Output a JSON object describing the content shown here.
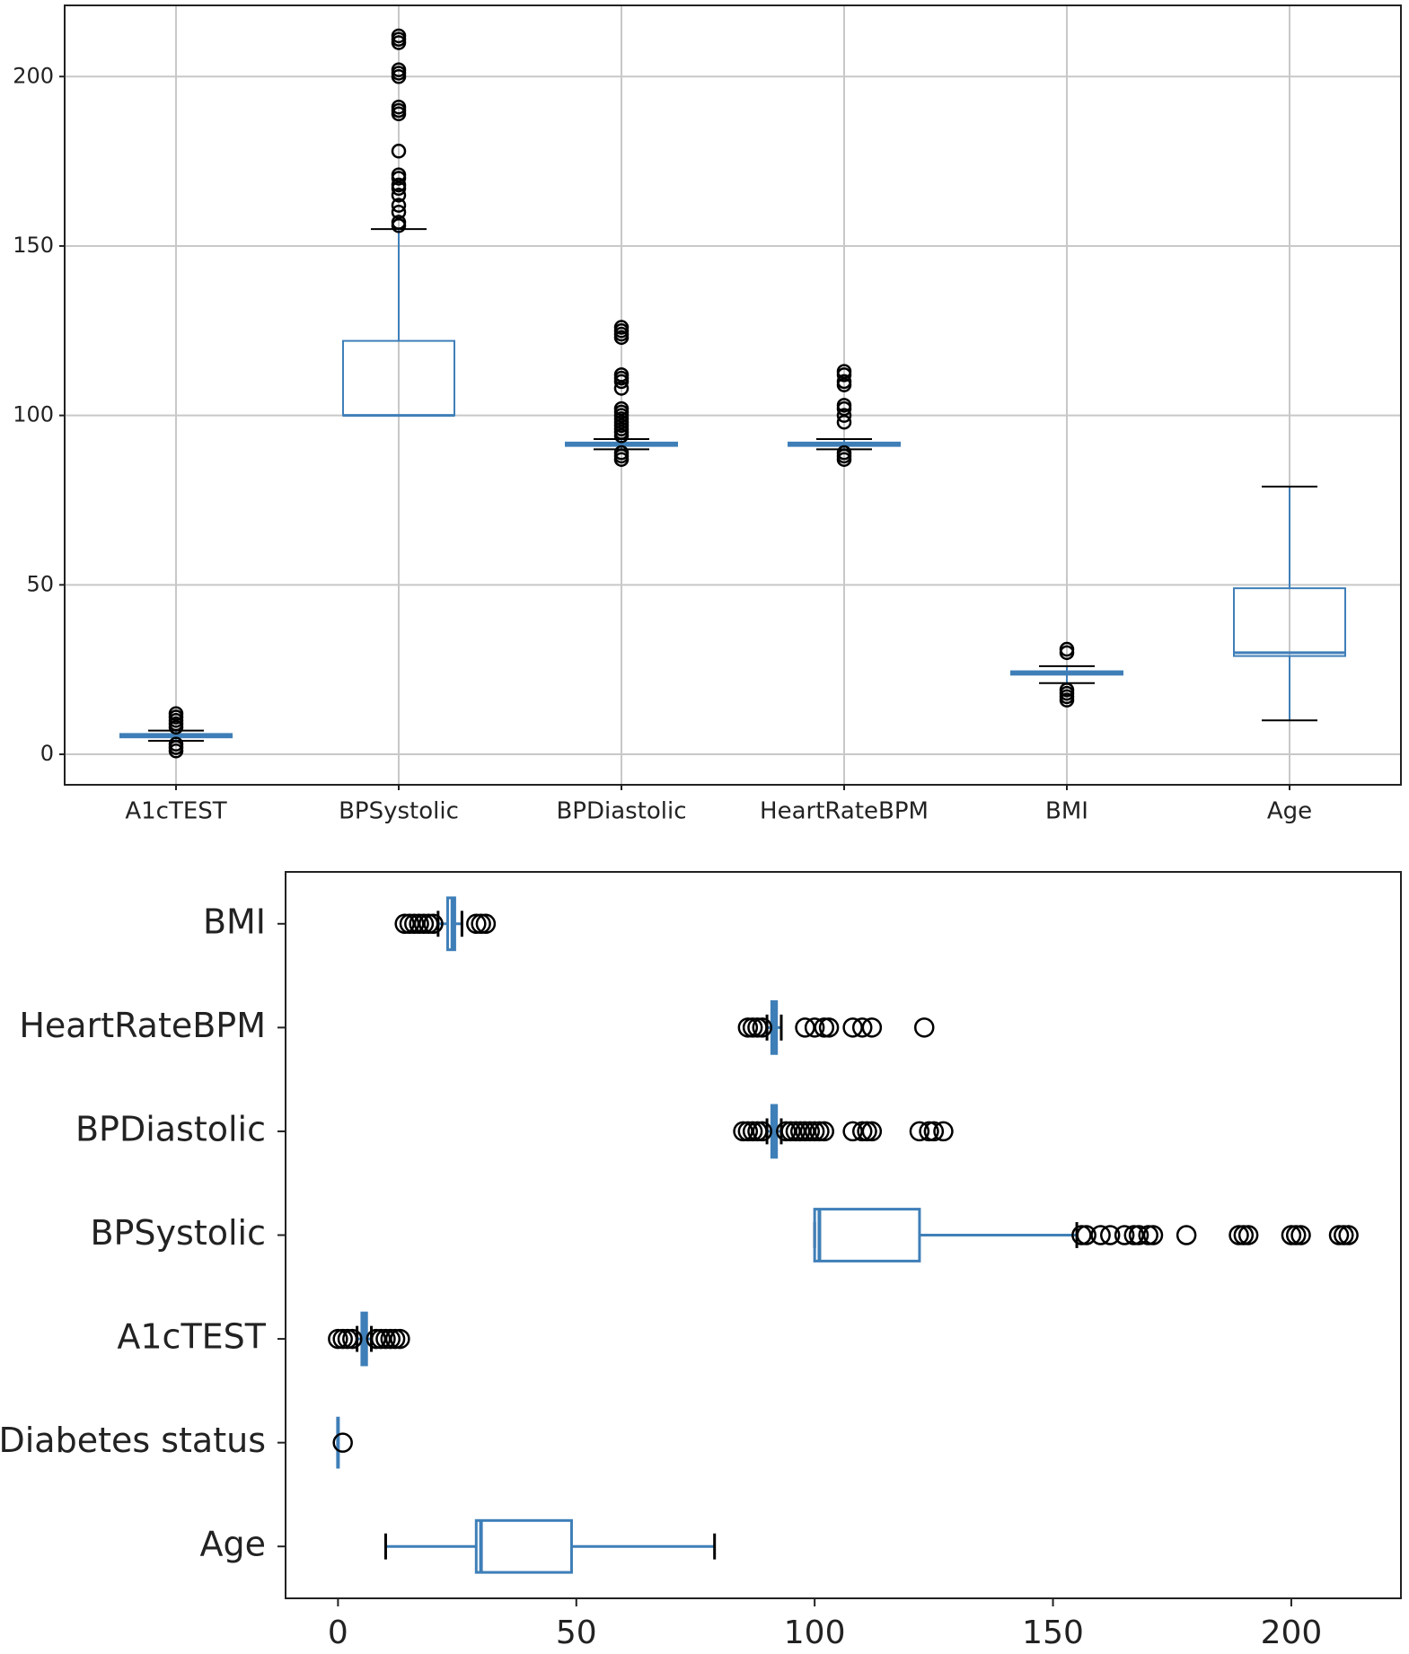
{
  "chart_data": [
    {
      "type": "box",
      "orient": "vertical",
      "grid": true,
      "box_color": "#3f7fb8",
      "cap_color": "#000000",
      "flier_color": "#000000",
      "categories": [
        "A1cTEST",
        "BPSystolic",
        "BPDiastolic",
        "HeartRateBPM",
        "BMI",
        "Age"
      ],
      "ylim": [
        -9,
        221
      ],
      "yticks": [
        0,
        50,
        100,
        150,
        200
      ],
      "boxes": [
        {
          "whislo": 4,
          "q1": 5,
          "med": 5.5,
          "q3": 6,
          "whishi": 7,
          "fliers": [
            1,
            2,
            3,
            8,
            9,
            10,
            11,
            12
          ]
        },
        {
          "whislo": 100,
          "q1": 100,
          "med": 100,
          "q3": 122,
          "whishi": 155,
          "fliers": [
            156,
            157,
            160,
            162,
            165,
            167,
            168,
            170,
            171,
            178,
            189,
            190,
            191,
            200,
            201,
            202,
            210,
            211,
            212
          ]
        },
        {
          "whislo": 90,
          "q1": 91,
          "med": 91.5,
          "q3": 92,
          "whishi": 93,
          "fliers": [
            87,
            88,
            89,
            94,
            95,
            96,
            97,
            98,
            99,
            100,
            101,
            102,
            108,
            110,
            111,
            112,
            123,
            124,
            125,
            126
          ]
        },
        {
          "whislo": 90,
          "q1": 91,
          "med": 91.5,
          "q3": 92,
          "whishi": 93,
          "fliers": [
            87,
            88,
            89,
            98,
            100,
            102,
            103,
            109,
            110,
            112,
            113
          ]
        },
        {
          "whislo": 21,
          "q1": 23.5,
          "med": 24,
          "q3": 24.5,
          "whishi": 26,
          "fliers": [
            16,
            17,
            18,
            19,
            30,
            31
          ]
        },
        {
          "whislo": 10,
          "q1": 29,
          "med": 30,
          "q3": 49,
          "whishi": 79,
          "fliers": []
        }
      ]
    },
    {
      "type": "box",
      "orient": "horizontal",
      "grid": false,
      "box_color": "#3f7fb8",
      "cap_color": "#000000",
      "flier_color": "#000000",
      "categories": [
        "Age",
        "Diabetes status",
        "A1cTEST",
        "BPSystolic",
        "BPDiastolic",
        "HeartRateBPM",
        "BMI"
      ],
      "xlim": [
        -11,
        223
      ],
      "xticks": [
        0,
        50,
        100,
        150,
        200
      ],
      "boxes": [
        {
          "whislo": 10,
          "q1": 29,
          "med": 30,
          "q3": 49,
          "whishi": 79,
          "fliers": []
        },
        {
          "whislo": 0,
          "q1": 0,
          "med": 0,
          "q3": 0,
          "whishi": 0,
          "fliers": [
            1
          ]
        },
        {
          "whislo": 4,
          "q1": 5,
          "med": 5.5,
          "q3": 6,
          "whishi": 7,
          "fliers": [
            0,
            1,
            2,
            3,
            8,
            9,
            10,
            11,
            12,
            13
          ]
        },
        {
          "whislo": 100,
          "q1": 100,
          "med": 101,
          "q3": 122,
          "whishi": 155,
          "fliers": [
            156,
            157,
            160,
            162,
            165,
            167,
            168,
            170,
            171,
            178,
            189,
            190,
            191,
            200,
            201,
            202,
            210,
            211,
            212
          ]
        },
        {
          "whislo": 90,
          "q1": 91,
          "med": 91.5,
          "q3": 92,
          "whishi": 93,
          "fliers": [
            85,
            86,
            87,
            88,
            89,
            94,
            95,
            96,
            97,
            98,
            99,
            100,
            101,
            102,
            108,
            110,
            111,
            112,
            122,
            124,
            125,
            127
          ]
        },
        {
          "whislo": 90,
          "q1": 91,
          "med": 91.5,
          "q3": 92,
          "whishi": 93,
          "fliers": [
            86,
            87,
            88,
            89,
            98,
            100,
            102,
            103,
            108,
            110,
            112,
            123
          ]
        },
        {
          "whislo": 21,
          "q1": 23,
          "med": 24,
          "q3": 24.5,
          "whishi": 26,
          "fliers": [
            14,
            15,
            16,
            17,
            18,
            19,
            20,
            29,
            30,
            31
          ]
        }
      ]
    }
  ]
}
